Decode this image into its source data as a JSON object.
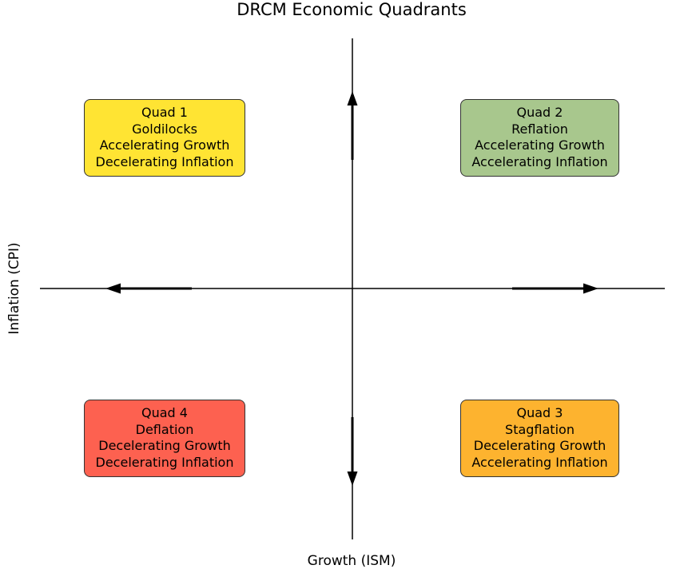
{
  "title": "DRCM Economic Quadrants",
  "xlabel": "Growth (ISM)",
  "ylabel": "Inflation (CPI)",
  "quadrants": {
    "q1": {
      "name": "Quad 1",
      "regime": "Goldilocks",
      "growth": "Accelerating Growth",
      "inflation": "Decelerating Inflation",
      "color": "#ffe433"
    },
    "q2": {
      "name": "Quad 2",
      "regime": "Reflation",
      "growth": "Accelerating Growth",
      "inflation": "Accelerating Inflation",
      "color": "#a8c78d"
    },
    "q3": {
      "name": "Quad 3",
      "regime": "Stagflation",
      "growth": "Decelerating Growth",
      "inflation": "Accelerating Inflation",
      "color": "#fdb32f"
    },
    "q4": {
      "name": "Quad 4",
      "regime": "Deflation",
      "growth": "Decelerating Growth",
      "inflation": "Decelerating Inflation",
      "color": "#fd6150"
    }
  },
  "colors": {
    "axis": "#000000",
    "border": "#333333"
  }
}
